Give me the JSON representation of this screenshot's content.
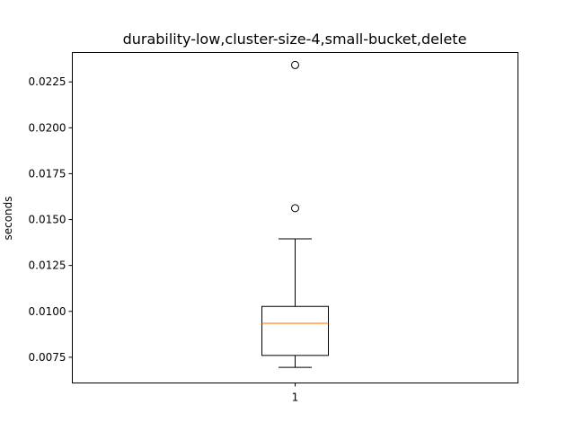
{
  "chart_data": {
    "type": "box",
    "title": "durability-low,cluster-size-4,small-bucket,delete",
    "xlabel": "",
    "ylabel": "seconds",
    "ylim": [
      0.0061,
      0.0241
    ],
    "y_ticks": [
      0.0075,
      0.01,
      0.0125,
      0.015,
      0.0175,
      0.02,
      0.0225
    ],
    "y_tick_labels": [
      "0.0075",
      "0.0100",
      "0.0125",
      "0.0150",
      "0.0175",
      "0.0200",
      "0.0225"
    ],
    "categories": [
      "1"
    ],
    "boxes": [
      {
        "label": "1",
        "whisker_low": 0.00695,
        "q1": 0.0076,
        "median": 0.00935,
        "q3": 0.01027,
        "whisker_high": 0.01395,
        "outliers": [
          0.01562,
          0.02342
        ]
      }
    ],
    "colors": {
      "box": "#000000",
      "median": "#ff7f0e",
      "background": "#ffffff"
    }
  }
}
